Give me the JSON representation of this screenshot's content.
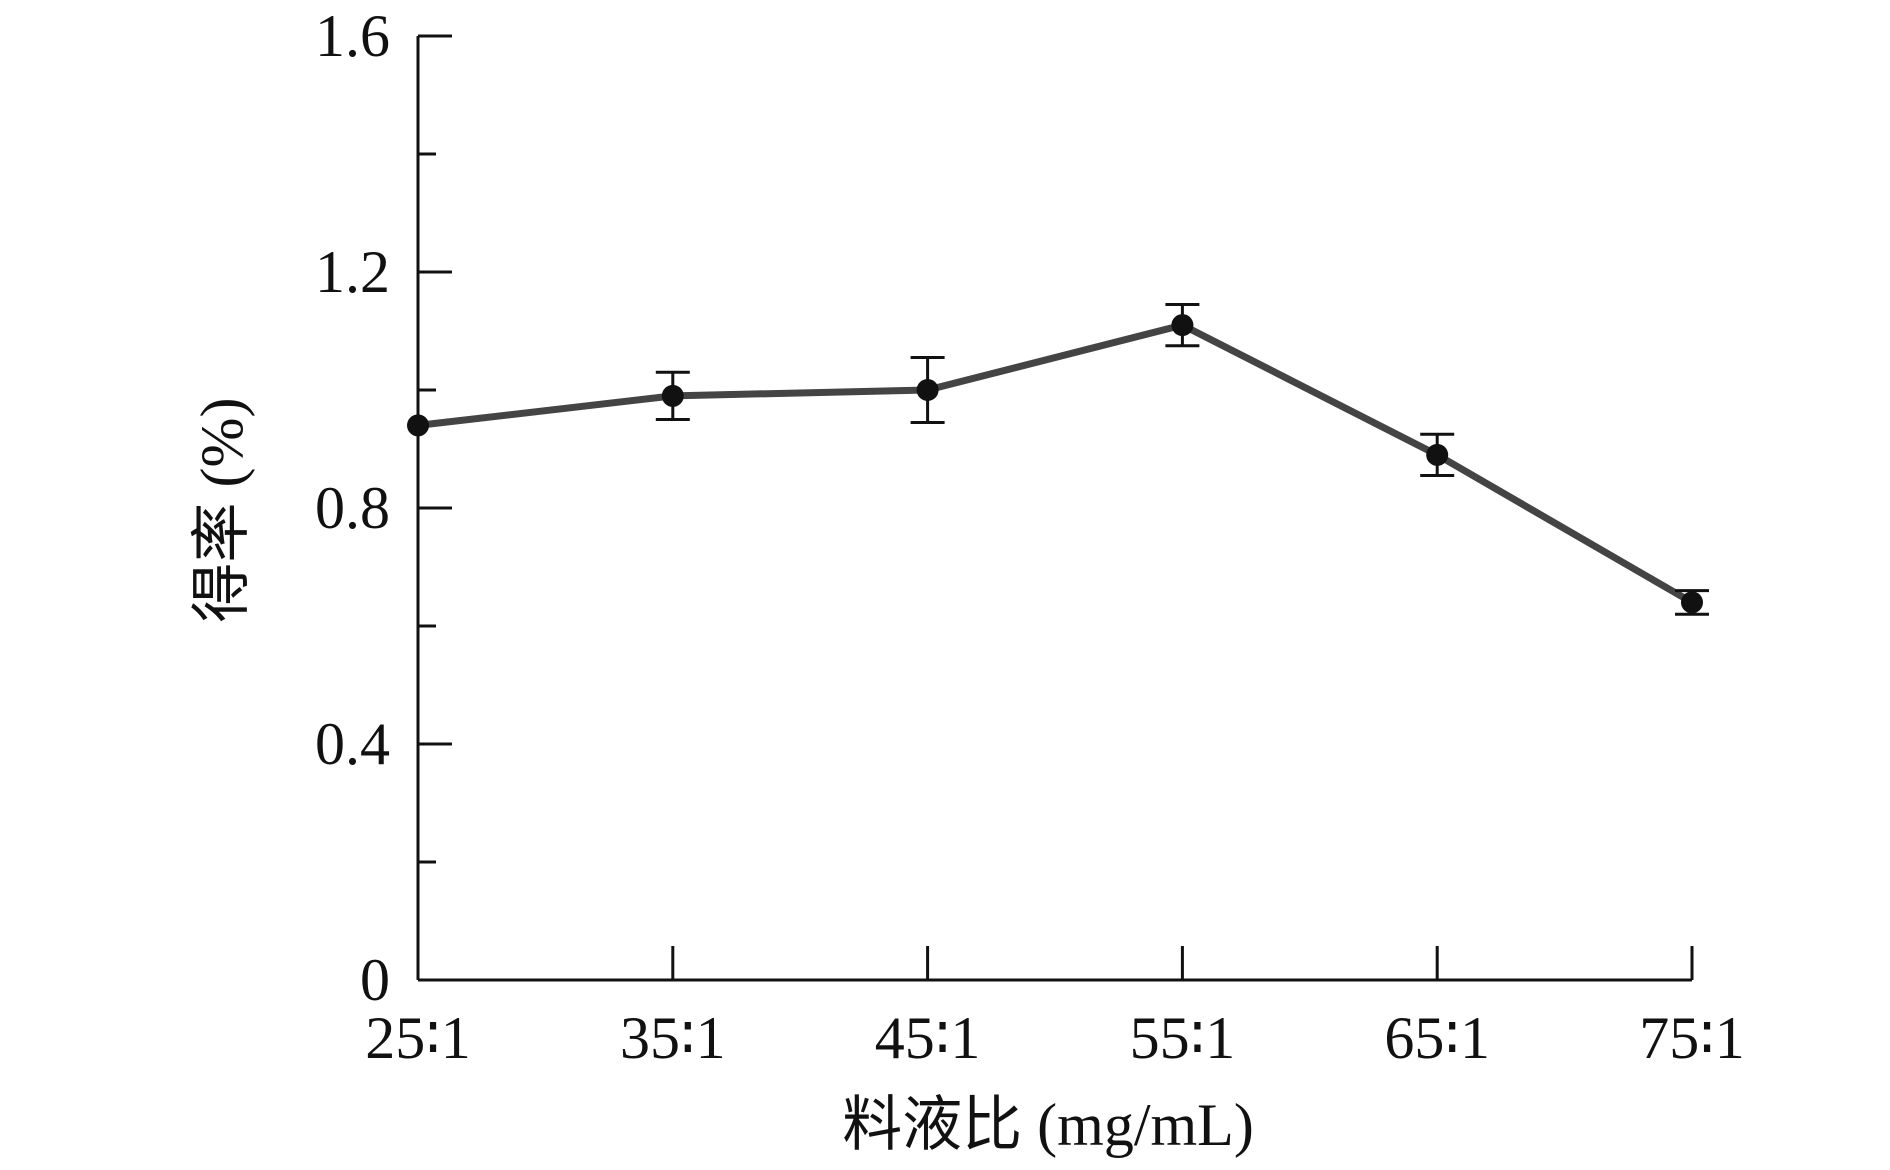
{
  "chart_data": {
    "type": "line",
    "title": "",
    "xlabel": "料液比 (mg/mL)",
    "ylabel": "得率 (%)",
    "categories": [
      "25∶1",
      "35∶1",
      "45∶1",
      "55∶1",
      "65∶1",
      "75∶1"
    ],
    "series": [
      {
        "name": "",
        "values": [
          0.94,
          0.99,
          1.0,
          1.11,
          0.89,
          0.64
        ],
        "error": [
          0.0,
          0.04,
          0.055,
          0.035,
          0.035,
          0.02
        ]
      }
    ],
    "ylim": [
      0,
      1.6
    ],
    "yticks": [
      0,
      0.4,
      0.8,
      1.2,
      1.6
    ],
    "ytick_labels": [
      "0",
      "0.4",
      "0.8",
      "1.2",
      "1.6"
    ],
    "grid": false,
    "legend": "none",
    "colors": {
      "line": "#444444",
      "marker": "#111111",
      "axis": "#111111"
    }
  }
}
